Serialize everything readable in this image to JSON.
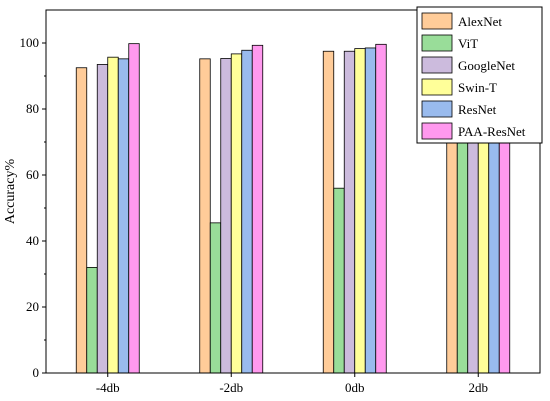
{
  "chart_data": {
    "type": "bar",
    "categories": [
      "-4db",
      "-2db",
      "0db",
      "2db"
    ],
    "series": [
      {
        "name": "AlexNet",
        "color": "#FFCC99",
        "values": [
          92.5,
          95.2,
          97.5,
          98.2
        ]
      },
      {
        "name": "ViT",
        "color": "#99DD99",
        "values": [
          32.0,
          45.5,
          56.0,
          81.0
        ]
      },
      {
        "name": "GoogleNet",
        "color": "#CCBBDD",
        "values": [
          93.5,
          95.3,
          97.5,
          98.7
        ]
      },
      {
        "name": "Swin-T",
        "color": "#FFFF99",
        "values": [
          95.7,
          96.7,
          98.3,
          99.3
        ]
      },
      {
        "name": "ResNet",
        "color": "#99BBEE",
        "values": [
          95.2,
          97.8,
          98.5,
          99.5
        ]
      },
      {
        "name": "PAA-ResNet",
        "color": "#FF99EE",
        "values": [
          99.8,
          99.3,
          99.6,
          99.6
        ]
      }
    ],
    "xlabel": "",
    "ylabel": "Accuracy%",
    "ylim": [
      0,
      110
    ],
    "yticks": [
      0,
      20,
      40,
      60,
      80,
      100
    ],
    "grid": false,
    "legend_position": "top-right"
  }
}
